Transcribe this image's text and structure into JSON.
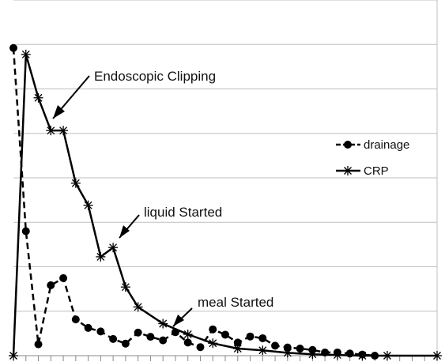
{
  "chart_data": {
    "type": "line",
    "title": "",
    "xlabel": "",
    "ylabel": "",
    "x": [
      0,
      1,
      2,
      3,
      4,
      5,
      6,
      7,
      8,
      9,
      10,
      11,
      12,
      13,
      14,
      15,
      16,
      17,
      18,
      19,
      20,
      21,
      22,
      23,
      24,
      25,
      26,
      27,
      28,
      29,
      30,
      31,
      32,
      33,
      34
    ],
    "xlim": [
      0,
      34
    ],
    "ylim": [
      0,
      100
    ],
    "grid": true,
    "legend_position": "right",
    "series": [
      {
        "name": "drainage",
        "marker": "circle",
        "dash": "dashed",
        "color": "#000000",
        "x": [
          0,
          1,
          2,
          3,
          4,
          5,
          6,
          7,
          8,
          9,
          10,
          11,
          12,
          13,
          14,
          15,
          16,
          17,
          18,
          19,
          20,
          21,
          22,
          23,
          24,
          25,
          26,
          27,
          28,
          29
        ],
        "values": [
          86.5,
          35,
          3.2,
          19.8,
          21.8,
          10.2,
          7.8,
          6.8,
          4.7,
          3.4,
          6.5,
          5.3,
          4.3,
          6.6,
          3.7,
          2.4,
          7.4,
          5.9,
          3.7,
          5.4,
          4.9,
          2.8,
          2.3,
          2.0,
          1.6,
          0.9,
          0.9,
          0.6,
          0.3,
          0
        ]
      },
      {
        "name": "CRP",
        "marker": "star",
        "dash": "solid",
        "color": "#000000",
        "x": [
          0,
          1,
          2,
          3,
          4,
          5,
          6,
          7,
          8,
          9,
          10,
          12,
          14,
          16,
          18,
          20,
          22,
          24,
          26,
          28,
          30,
          34
        ],
        "values": [
          0,
          84.7,
          72.5,
          63.3,
          63.3,
          48.5,
          42.3,
          27.8,
          30.4,
          19.3,
          13.7,
          9.0,
          6.0,
          3.5,
          2.0,
          1.5,
          0.8,
          0.4,
          0.2,
          0,
          0,
          0
        ]
      }
    ],
    "annotations": [
      {
        "text": "Endoscopic Clipping",
        "x": 3,
        "y": 63.3
      },
      {
        "text": "liquid Started",
        "x": 8,
        "y": 30.4
      },
      {
        "text": "meal Started",
        "x": 12.3,
        "y": 8.6
      }
    ]
  }
}
